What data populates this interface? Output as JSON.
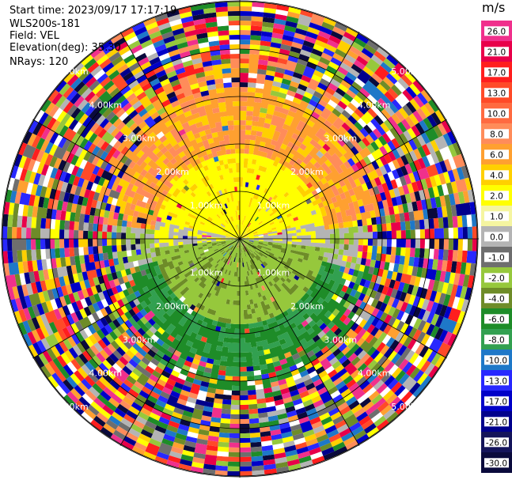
{
  "header": {
    "start_time": "Start time: 2023/09/17 17:17:19",
    "instrument": "WLS200s-181",
    "field": "Field: VEL",
    "elevation": "Elevation(deg): 35.30",
    "nrays": "NRays: 120"
  },
  "chart_data": {
    "type": "heatmap",
    "projection": "polar PPI",
    "n_rays": 120,
    "range_rings_km": [
      1.0,
      2.0,
      3.0,
      4.0,
      5.0
    ],
    "ring_labels": [
      "1.00km",
      "2.00km",
      "3.00km",
      "4.00km",
      "5.00km"
    ],
    "colorbar": {
      "unit": "m/s",
      "ticks": [
        "26.0",
        "21.0",
        "17.0",
        "13.0",
        "10.0",
        "8.0",
        "6.0",
        "4.0",
        "2.0",
        "1.0",
        "0.0",
        "-1.0",
        "-2.0",
        "-4.0",
        "-6.0",
        "-8.0",
        "-10.0",
        "-13.0",
        "-17.0",
        "-21.0",
        "-26.0",
        "-30.0"
      ],
      "colors": [
        "#f0308c",
        "#e8004a",
        "#ff1e1e",
        "#ff4a28",
        "#ff6a40",
        "#ff8c5a",
        "#ffa030",
        "#ffd000",
        "#ffff00",
        "#f5f5a0",
        "#b4b4b4",
        "#6e6e6e",
        "#96c83c",
        "#6e8c28",
        "#1e8c28",
        "#32a050",
        "#1e78c8",
        "#2828ff",
        "#0000c8",
        "#00008c",
        "#14145a",
        "#0a0a3c"
      ]
    },
    "description_fields": {
      "near_field_north": "positive (yellow/orange)",
      "near_field_south": "negative (green)",
      "far_field": "noise"
    }
  }
}
